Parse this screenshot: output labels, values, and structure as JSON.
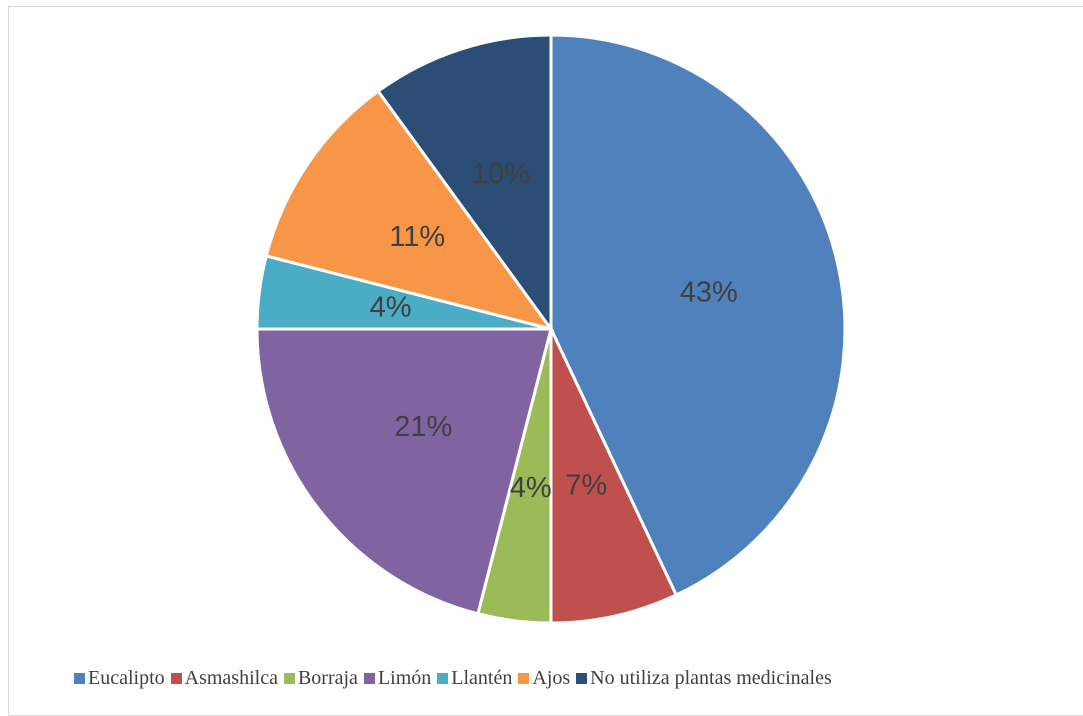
{
  "chart_data": {
    "type": "pie",
    "title": "",
    "legend_position": "bottom",
    "slices": [
      {
        "label": "Eucalipto",
        "value": 43,
        "display": "43%",
        "color": "#4f81bd"
      },
      {
        "label": "Asmashilca",
        "value": 7,
        "display": "7%",
        "color": "#c0504d"
      },
      {
        "label": "Borraja",
        "value": 4,
        "display": "4%",
        "color": "#9bbb59"
      },
      {
        "label": "Limón",
        "value": 21,
        "display": "21%",
        "color": "#8064a2"
      },
      {
        "label": "Llantén",
        "value": 4,
        "display": "4%",
        "color": "#4bacc6"
      },
      {
        "label": "Ajos",
        "value": 11,
        "display": "11%",
        "color": "#f79646"
      },
      {
        "label": "No utiliza plantas medicinales",
        "value": 10,
        "display": "10%",
        "color": "#2c4d75"
      }
    ]
  }
}
